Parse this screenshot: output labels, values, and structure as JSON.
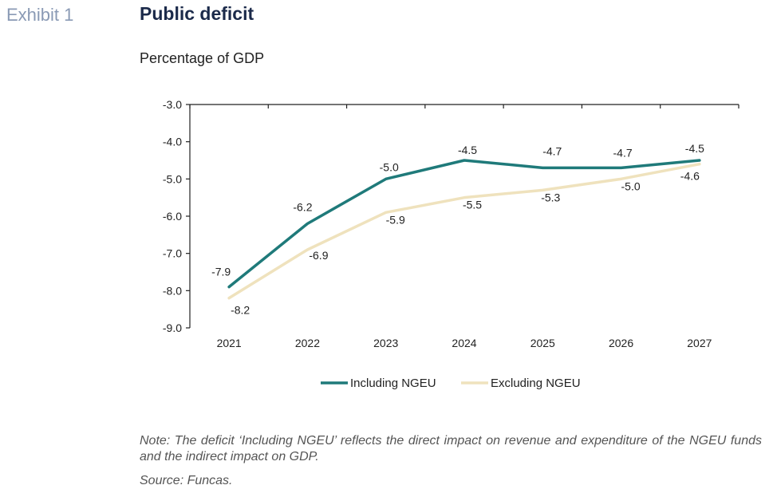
{
  "header": {
    "exhibit": "Exhibit 1",
    "title": "Public deficit",
    "subtitle": "Percentage of GDP"
  },
  "chart_data": {
    "type": "line",
    "x": [
      "2021",
      "2022",
      "2023",
      "2024",
      "2025",
      "2026",
      "2027"
    ],
    "ylim": [
      -9.0,
      -3.0
    ],
    "yticks": [
      "-3.0",
      "-4.0",
      "-5.0",
      "-6.0",
      "-7.0",
      "-8.0",
      "-9.0"
    ],
    "grid": false,
    "legend_position": "bottom",
    "series": [
      {
        "name": "Including NGEU",
        "color": "#1f7a7a",
        "values": [
          -7.9,
          -6.2,
          -5.0,
          -4.5,
          -4.7,
          -4.7,
          -4.5
        ],
        "labels": [
          "-7.9",
          "-6.2",
          "-5.0",
          "-4.5",
          "-4.7",
          "-4.7",
          "-4.5"
        ]
      },
      {
        "name": "Excluding NGEU",
        "color": "#efe2bd",
        "values": [
          -8.2,
          -6.9,
          -5.9,
          -5.5,
          -5.3,
          -5.0,
          -4.6
        ],
        "labels": [
          "-8.2",
          "-6.9",
          "-5.9",
          "-5.5",
          "-5.3",
          "-5.0",
          "-4.6"
        ]
      }
    ]
  },
  "footer": {
    "note": "Note: The deficit ‘Including NGEU’ reflects the direct impact on revenue and expenditure of the NGEU funds and the indirect impact on GDP.",
    "source": "Source: Funcas."
  }
}
